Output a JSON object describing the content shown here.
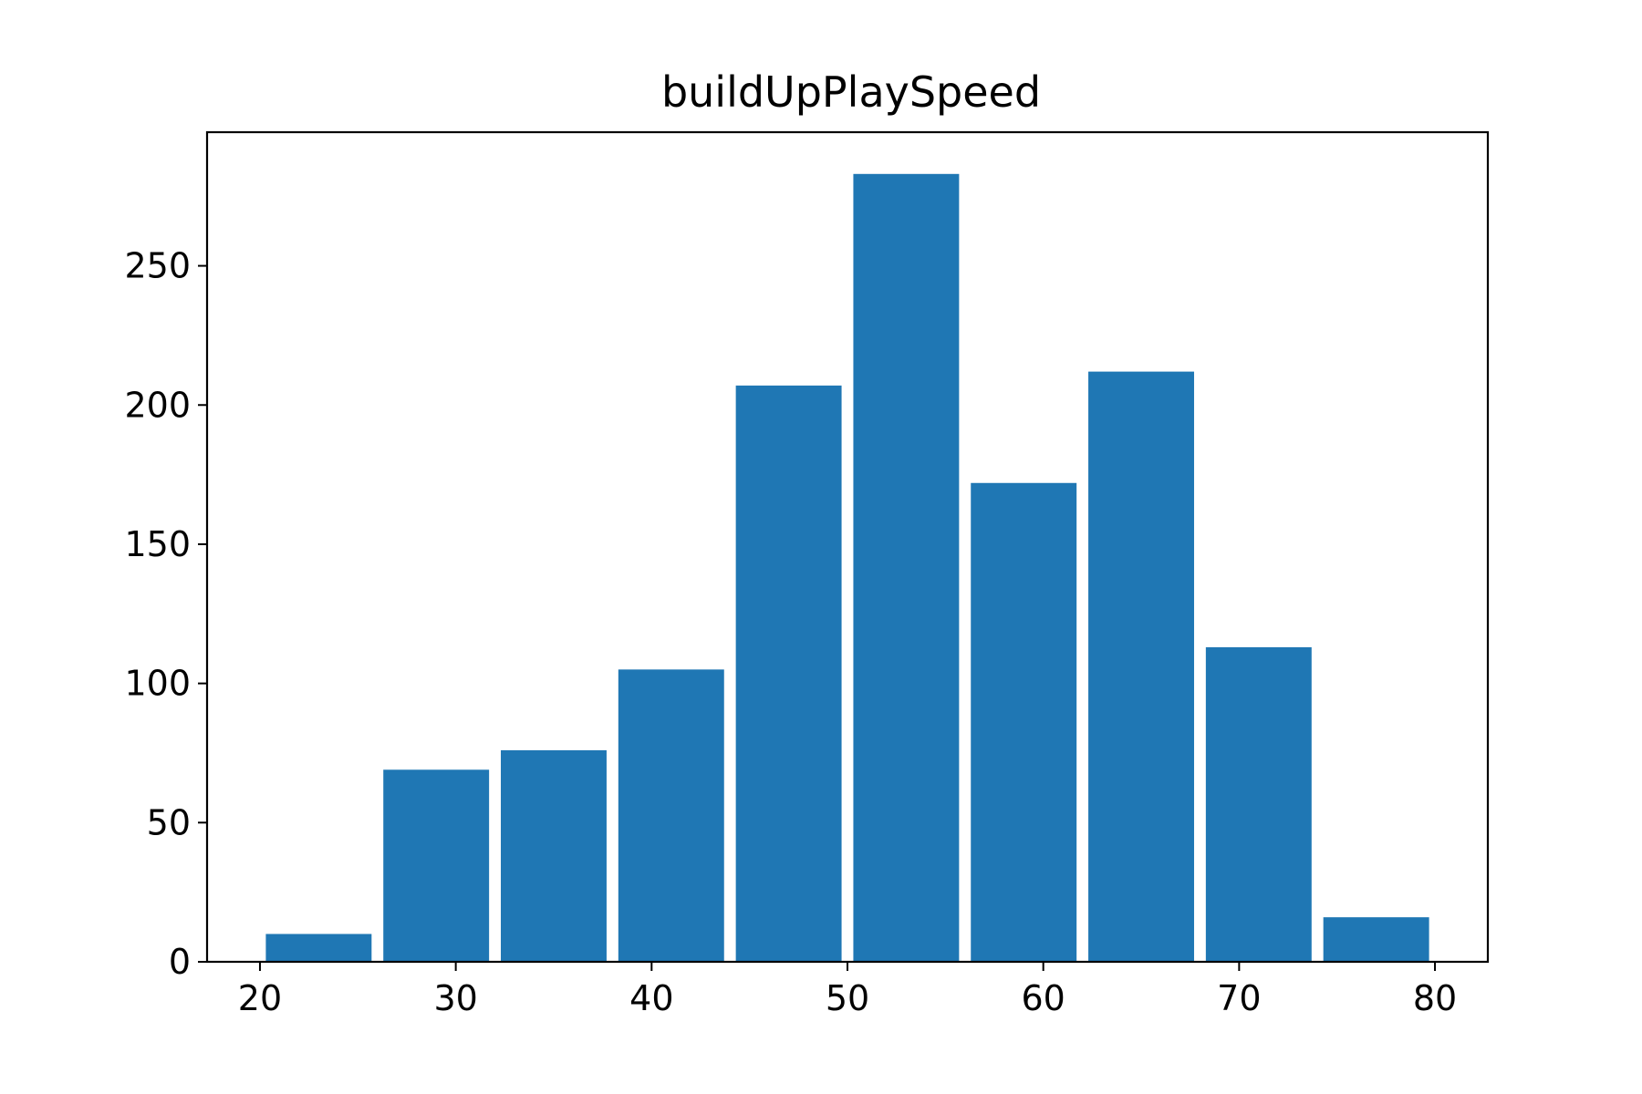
{
  "chart_data": {
    "type": "bar",
    "title": "buildUpPlaySpeed",
    "xlabel": "",
    "ylabel": "",
    "xlim": [
      17.3,
      82.7
    ],
    "ylim": [
      0,
      298
    ],
    "xticks": [
      20,
      30,
      40,
      50,
      60,
      70,
      80
    ],
    "yticks": [
      0,
      50,
      100,
      150,
      200,
      250
    ],
    "bin_edges": [
      20,
      26,
      32,
      38,
      44,
      50,
      56,
      62,
      68,
      74,
      80
    ],
    "bar_width_fraction": 0.9,
    "values": [
      10,
      69,
      76,
      105,
      207,
      283,
      172,
      212,
      113,
      16
    ],
    "bar_color": "#1f77b4",
    "grid": false,
    "legend": "none"
  }
}
